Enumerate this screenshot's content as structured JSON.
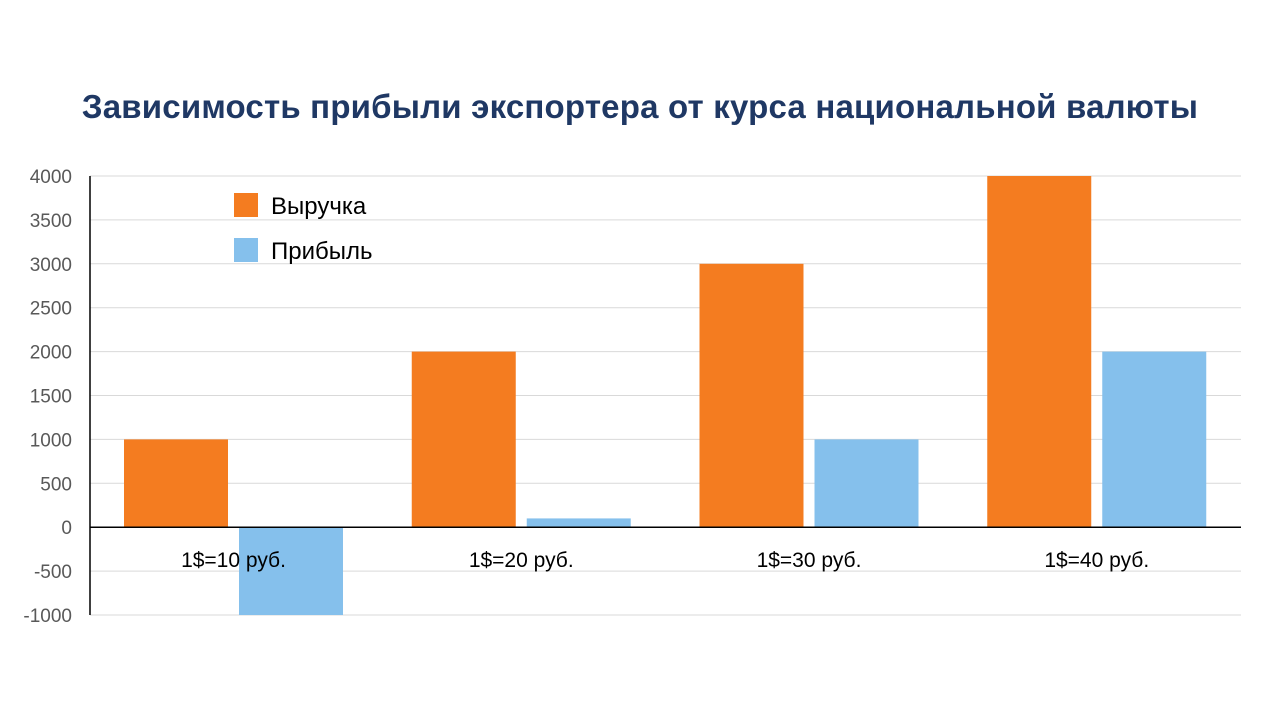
{
  "colors": {
    "title": "#1f3864",
    "series_1": "#f47c20",
    "series_2": "#85c0ec",
    "grid": "#d9d9d9",
    "axis": "#000000",
    "tick_text": "#595959",
    "label_text": "#000000"
  },
  "chart_data": {
    "type": "bar",
    "title": "Зависимость прибыли экспортера от курса национальной валюты",
    "categories": [
      "1$=10 руб.",
      "1$=20 руб.",
      "1$=30 руб.",
      "1$=40 руб."
    ],
    "series": [
      {
        "name": "Выручка",
        "values": [
          1000,
          2000,
          3000,
          4000
        ]
      },
      {
        "name": "Прибыль",
        "values": [
          -1000,
          100,
          1000,
          2000
        ]
      }
    ],
    "ylim": [
      -1000,
      4000
    ],
    "yticks": [
      "4000",
      "3500",
      "3000",
      "2500",
      "2000",
      "1500",
      "1000",
      "500",
      "0",
      "-500",
      "-1000"
    ],
    "grid": true,
    "legend_position": "top-left"
  }
}
